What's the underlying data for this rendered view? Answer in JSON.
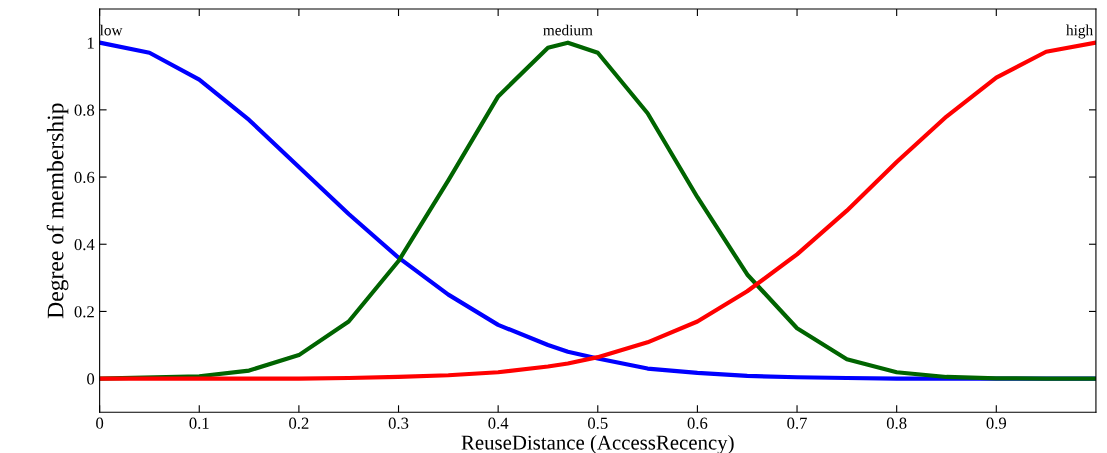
{
  "chart_data": {
    "type": "line",
    "xlabel": "ReuseDistance (AccessRecency)",
    "ylabel": "Degree of membership",
    "xlim": [
      0,
      1
    ],
    "ylim": [
      -0.1,
      1.1
    ],
    "xticks": [
      0,
      0.1,
      0.2,
      0.3,
      0.4,
      0.5,
      0.6,
      0.7,
      0.8,
      0.9
    ],
    "yticks": [
      0,
      0.2,
      0.4,
      0.6,
      0.8,
      1
    ],
    "grid": false,
    "marker": "none",
    "line_style": "solid",
    "x": [
      0,
      0.05,
      0.1,
      0.15,
      0.2,
      0.25,
      0.3,
      0.35,
      0.4,
      0.45,
      0.47,
      0.5,
      0.55,
      0.6,
      0.65,
      0.7,
      0.75,
      0.8,
      0.85,
      0.9,
      0.95,
      1
    ],
    "series": [
      {
        "color": "#0000ff",
        "values": [
          1,
          0.97,
          0.89,
          0.77,
          0.63,
          0.49,
          0.36,
          0.25,
          0.16,
          0.1,
          0.08,
          0.06,
          0.03,
          0.017,
          0.008,
          0.004,
          0.002,
          0,
          0,
          0,
          0,
          0
        ]
      },
      {
        "color": "#006400",
        "x": [
          0,
          0.1,
          0.15,
          0.2,
          0.25,
          0.3,
          0.35,
          0.4,
          0.45,
          0.47,
          0.5,
          0.55,
          0.6,
          0.65,
          0.7,
          0.75,
          0.8,
          0.85,
          0.9,
          0.95,
          1
        ],
        "values": [
          0,
          0.007,
          0.024,
          0.07,
          0.17,
          0.35,
          0.59,
          0.84,
          0.985,
          1,
          0.97,
          0.79,
          0.54,
          0.31,
          0.15,
          0.058,
          0.019,
          0.005,
          0.001,
          0,
          0
        ]
      },
      {
        "color": "#ff0000",
        "values": [
          0,
          0,
          0,
          0,
          0,
          0.002,
          0.005,
          0.01,
          0.019,
          0.036,
          0.045,
          0.064,
          0.108,
          0.17,
          0.26,
          0.37,
          0.5,
          0.645,
          0.78,
          0.896,
          0.973,
          1
        ]
      }
    ],
    "annotations": [
      {
        "text": "low",
        "x": 0,
        "y": 1
      },
      {
        "text": "medium",
        "x": 0.47,
        "y": 1
      },
      {
        "text": "high",
        "x": 1,
        "y": 1
      }
    ]
  }
}
